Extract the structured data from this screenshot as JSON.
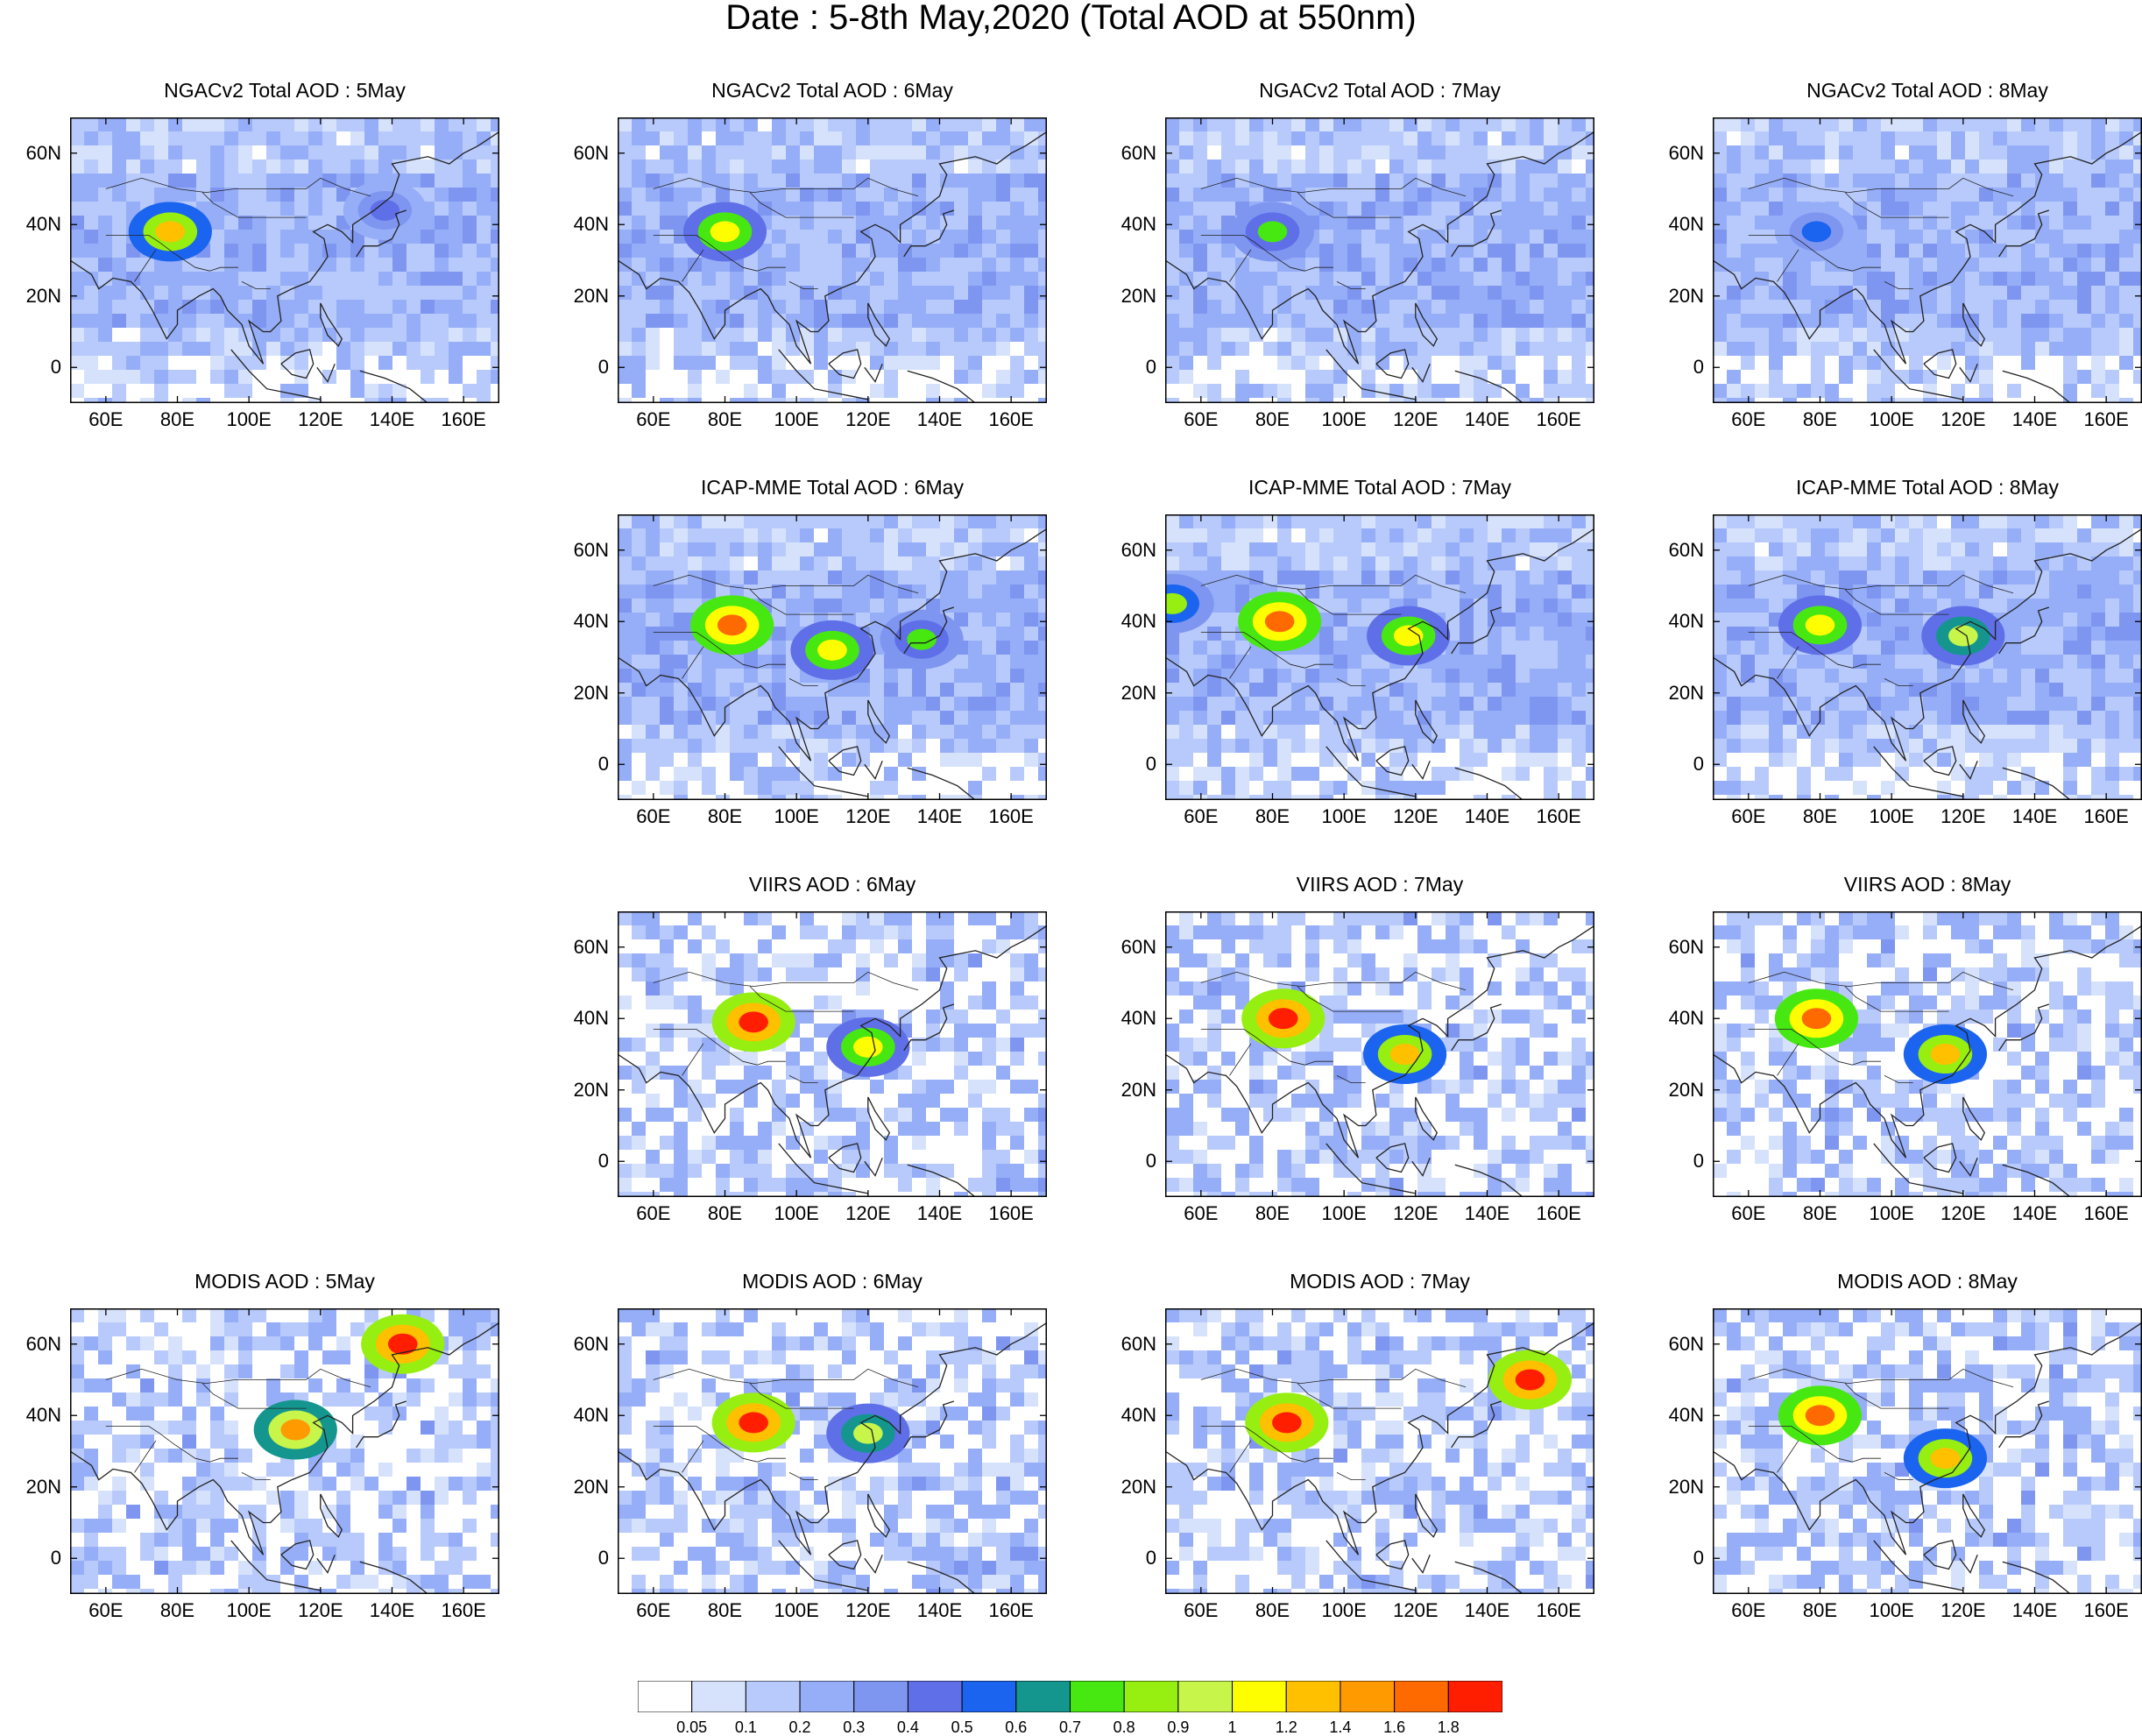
{
  "title": "Date : 5-8th May,2020 (Total AOD at 550nm)",
  "chart_data": {
    "type": "heatmap",
    "title": "Date : 5-8th May,2020 (Total AOD at 550nm)",
    "map_extent": {
      "lon": [
        50,
        170
      ],
      "lat": [
        -10,
        70
      ]
    },
    "xticks": [
      "60E",
      "80E",
      "100E",
      "120E",
      "140E",
      "160E"
    ],
    "xtick_values": [
      60,
      80,
      100,
      120,
      140,
      160
    ],
    "yticks": [
      "60N",
      "40N",
      "20N",
      "0"
    ],
    "ytick_values": [
      60,
      40,
      20,
      0
    ],
    "colorbar": {
      "levels": [
        "0.05",
        "0.1",
        "0.2",
        "0.3",
        "0.4",
        "0.5",
        "0.6",
        "0.7",
        "0.8",
        "0.9",
        "1",
        "1.2",
        "1.4",
        "1.6",
        "1.8"
      ],
      "colors": [
        "#ffffff",
        "#d6e2fc",
        "#b8cafb",
        "#96aef7",
        "#7f96f1",
        "#5f6fe8",
        "#1a64f0",
        "#14968f",
        "#47e811",
        "#96ef11",
        "#c8f54a",
        "#fffe00",
        "#ffc000",
        "#ff9a00",
        "#ff6a00",
        "#ff1e00"
      ]
    },
    "rows": [
      {
        "source": "NGACv2 Total AOD",
        "panels": [
          {
            "title": "NGACv2 Total AOD : 5May",
            "hotspots": [
              {
                "lon": 78,
                "lat": 38,
                "aod": 1.2
              },
              {
                "lon": 138,
                "lat": 44,
                "aod": 0.45
              }
            ],
            "background_aod": 0.1
          },
          {
            "title": "NGACv2 Total AOD : 6May",
            "hotspots": [
              {
                "lon": 80,
                "lat": 38,
                "aod": 1.0
              }
            ],
            "background_aod": 0.1
          },
          {
            "title": "NGACv2 Total AOD : 7May",
            "hotspots": [
              {
                "lon": 80,
                "lat": 38,
                "aod": 0.7
              }
            ],
            "background_aod": 0.1
          },
          {
            "title": "NGACv2 Total AOD : 8May",
            "hotspots": [
              {
                "lon": 79,
                "lat": 38,
                "aod": 0.55
              }
            ],
            "background_aod": 0.1
          }
        ]
      },
      {
        "source": "ICAP-MME Total AOD",
        "panels": [
          null,
          {
            "title": "ICAP-MME Total AOD : 6May",
            "hotspots": [
              {
                "lon": 82,
                "lat": 39,
                "aod": 1.6
              },
              {
                "lon": 110,
                "lat": 32,
                "aod": 1.0
              },
              {
                "lon": 135,
                "lat": 35,
                "aod": 0.7
              }
            ],
            "background_aod": 0.15
          },
          {
            "title": "ICAP-MME Total AOD : 7May",
            "hotspots": [
              {
                "lon": 82,
                "lat": 40,
                "aod": 1.6
              },
              {
                "lon": 118,
                "lat": 36,
                "aod": 1.1
              },
              {
                "lon": 52,
                "lat": 45,
                "aod": 0.8
              }
            ],
            "background_aod": 0.15
          },
          {
            "title": "ICAP-MME Total AOD : 8May",
            "hotspots": [
              {
                "lon": 80,
                "lat": 39,
                "aod": 1.1
              },
              {
                "lon": 120,
                "lat": 36,
                "aod": 0.9
              }
            ],
            "background_aod": 0.15
          }
        ]
      },
      {
        "source": "VIIRS AOD",
        "panels": [
          null,
          {
            "title": "VIIRS AOD : 6May",
            "hotspots": [
              {
                "lon": 88,
                "lat": 39,
                "aod": 1.8
              },
              {
                "lon": 120,
                "lat": 32,
                "aod": 1.0
              }
            ],
            "background_aod": 0.1
          },
          {
            "title": "VIIRS AOD : 7May",
            "hotspots": [
              {
                "lon": 83,
                "lat": 40,
                "aod": 1.8
              },
              {
                "lon": 117,
                "lat": 30,
                "aod": 1.2
              }
            ],
            "background_aod": 0.1
          },
          {
            "title": "VIIRS AOD : 8May",
            "hotspots": [
              {
                "lon": 79,
                "lat": 40,
                "aod": 1.6
              },
              {
                "lon": 115,
                "lat": 30,
                "aod": 1.2
              }
            ],
            "background_aod": 0.1
          }
        ]
      },
      {
        "source": "MODIS AOD",
        "panels": [
          {
            "title": "MODIS AOD : 5May",
            "hotspots": [
              {
                "lon": 113,
                "lat": 36,
                "aod": 1.4
              },
              {
                "lon": 143,
                "lat": 60,
                "aod": 1.8
              }
            ],
            "background_aod": 0.1
          },
          {
            "title": "MODIS AOD : 6May",
            "hotspots": [
              {
                "lon": 88,
                "lat": 38,
                "aod": 1.8
              },
              {
                "lon": 120,
                "lat": 35,
                "aod": 0.9
              }
            ],
            "background_aod": 0.1
          },
          {
            "title": "MODIS AOD : 7May",
            "hotspots": [
              {
                "lon": 84,
                "lat": 38,
                "aod": 1.8
              },
              {
                "lon": 152,
                "lat": 50,
                "aod": 1.8
              }
            ],
            "background_aod": 0.1
          },
          {
            "title": "MODIS AOD : 8May",
            "hotspots": [
              {
                "lon": 80,
                "lat": 40,
                "aod": 1.6
              },
              {
                "lon": 115,
                "lat": 28,
                "aod": 1.2
              }
            ],
            "background_aod": 0.1
          }
        ]
      }
    ]
  }
}
